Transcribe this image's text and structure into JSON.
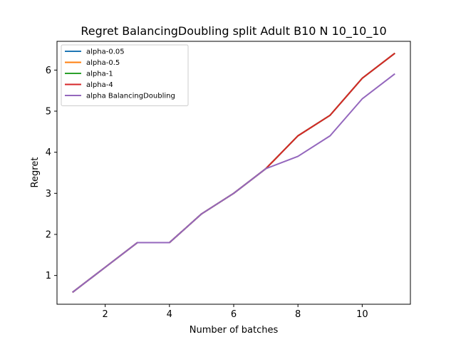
{
  "chart_data": {
    "type": "line",
    "title": "Regret BalancingDoubling split Adult B10 N 10_10_10",
    "xlabel": "Number of batches",
    "ylabel": "Regret",
    "xlim": [
      0.5,
      11.5
    ],
    "ylim": [
      0.3,
      6.7
    ],
    "xticks": [
      2,
      4,
      6,
      8,
      10
    ],
    "yticks": [
      1,
      2,
      3,
      4,
      5,
      6
    ],
    "grid": false,
    "legend_position": "top-left",
    "x": [
      1,
      2,
      3,
      4,
      5,
      6,
      7,
      8,
      9,
      10,
      11
    ],
    "series": [
      {
        "name": "alpha-0.05",
        "color": "#1f77b4",
        "values": [
          0.6,
          1.2,
          1.8,
          1.8,
          2.5,
          3.0,
          3.6,
          4.4,
          4.9,
          5.8,
          6.4
        ]
      },
      {
        "name": "alpha-0.5",
        "color": "#ff7f0e",
        "values": [
          0.6,
          1.2,
          1.8,
          1.8,
          2.5,
          3.0,
          3.6,
          4.4,
          4.9,
          5.8,
          6.4
        ]
      },
      {
        "name": "alpha-1",
        "color": "#2ca02c",
        "values": [
          0.6,
          1.2,
          1.8,
          1.8,
          2.5,
          3.0,
          3.6,
          4.4,
          4.9,
          5.8,
          6.4
        ]
      },
      {
        "name": "alpha-4",
        "color": "#d62728",
        "values": [
          0.6,
          1.2,
          1.8,
          1.8,
          2.5,
          3.0,
          3.6,
          4.4,
          4.9,
          5.8,
          6.4
        ]
      },
      {
        "name": "alpha BalancingDoubling",
        "color": "#9467bd",
        "values": [
          0.6,
          1.2,
          1.8,
          1.8,
          2.5,
          3.0,
          3.6,
          3.9,
          4.4,
          5.3,
          5.9
        ]
      }
    ]
  }
}
